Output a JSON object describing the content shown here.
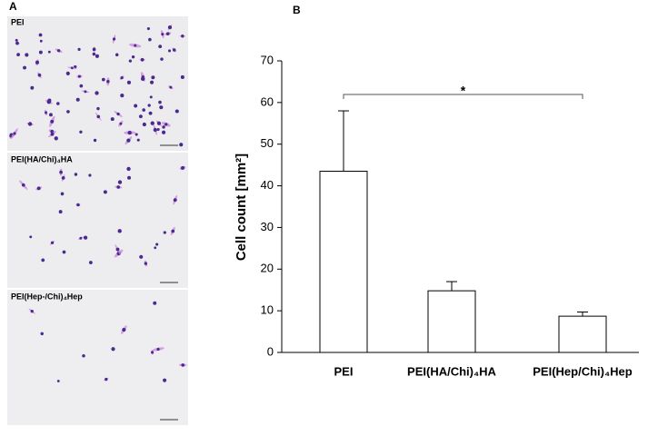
{
  "panel_labels": [
    "A",
    "B"
  ],
  "images": [
    {
      "label": "PEI"
    },
    {
      "label": "PEI(HA/Chi)₄HA"
    },
    {
      "label": "PEI(Hep-/Chi)₄Hep"
    }
  ],
  "chart_data": {
    "type": "bar",
    "y_label": "Cell count [mm²]",
    "categories": [
      "PEI",
      "PEI(HA/Chi)₄HA",
      "PEI(Hep/Chi)₄Hep"
    ],
    "values": [
      43.5,
      14.8,
      8.7
    ],
    "errors": [
      14.5,
      2.2,
      1.0
    ],
    "color": "#ffffff",
    "ylim": [
      0,
      70
    ],
    "yticks": [
      0,
      10,
      20,
      30,
      40,
      50,
      60,
      70
    ],
    "annotation": "*"
  }
}
